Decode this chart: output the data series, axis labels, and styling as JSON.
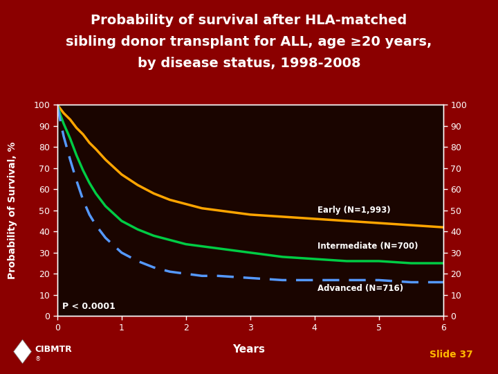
{
  "title_line1": "Probability of survival after HLA-matched",
  "title_line2": "sibling donor transplant for ALL, age ≥20 years,",
  "title_line3": "by disease status, 1998-2008",
  "bg_outer": "#8B0000",
  "bg_plot": "#1a0500",
  "bg_bottom": "#100200",
  "xlabel": "Years",
  "ylabel": "Probability of Survival, %",
  "xlim": [
    0,
    6
  ],
  "ylim": [
    0,
    100
  ],
  "xticks": [
    0,
    1,
    2,
    3,
    4,
    5,
    6
  ],
  "yticks": [
    0,
    10,
    20,
    30,
    40,
    50,
    60,
    70,
    80,
    90,
    100
  ],
  "pvalue": "P < 0.0001",
  "slide_text": "Slide 37",
  "curves": {
    "early": {
      "label": "Early (N=1,993)",
      "color": "#FFA500",
      "linestyle": "solid",
      "linewidth": 2.5,
      "x": [
        0,
        0.05,
        0.1,
        0.2,
        0.3,
        0.4,
        0.5,
        0.6,
        0.75,
        1.0,
        1.25,
        1.5,
        1.75,
        2.0,
        2.25,
        2.5,
        3.0,
        3.5,
        4.0,
        4.5,
        5.0,
        5.5,
        6.0
      ],
      "y": [
        100,
        98,
        96,
        93,
        89,
        86,
        82,
        79,
        74,
        67,
        62,
        58,
        55,
        53,
        51,
        50,
        48,
        47,
        46,
        45,
        44,
        43,
        42
      ]
    },
    "intermediate": {
      "label": "Intermediate (N=700)",
      "color": "#00CC44",
      "linestyle": "solid",
      "linewidth": 2.5,
      "x": [
        0,
        0.05,
        0.1,
        0.2,
        0.3,
        0.4,
        0.5,
        0.6,
        0.75,
        1.0,
        1.25,
        1.5,
        1.75,
        2.0,
        2.25,
        2.5,
        3.0,
        3.5,
        4.0,
        4.5,
        5.0,
        5.5,
        6.0
      ],
      "y": [
        100,
        95,
        91,
        84,
        76,
        69,
        63,
        58,
        52,
        45,
        41,
        38,
        36,
        34,
        33,
        32,
        30,
        28,
        27,
        26,
        26,
        25,
        25
      ]
    },
    "advanced": {
      "label": "Advanced (N=716)",
      "color": "#5599FF",
      "linestyle": "dashed",
      "linewidth": 2.5,
      "x": [
        0,
        0.05,
        0.1,
        0.2,
        0.3,
        0.4,
        0.5,
        0.6,
        0.75,
        1.0,
        1.25,
        1.5,
        1.75,
        2.0,
        2.25,
        2.5,
        3.0,
        3.5,
        4.0,
        4.5,
        5.0,
        5.5,
        6.0
      ],
      "y": [
        100,
        92,
        85,
        74,
        64,
        55,
        48,
        43,
        37,
        30,
        26,
        23,
        21,
        20,
        19,
        19,
        18,
        17,
        17,
        17,
        17,
        16,
        16
      ]
    }
  },
  "annotations": {
    "early_x": 4.05,
    "early_y": 50,
    "intermediate_x": 4.05,
    "intermediate_y": 33,
    "advanced_x": 4.05,
    "advanced_y": 13
  },
  "title_color": "#FFFFFF",
  "axis_color": "#FFFFFF",
  "tick_color": "#FFFFFF",
  "label_color": "#FFFFFF",
  "title_fontsize": 14,
  "axis_label_fontsize": 10,
  "tick_fontsize": 9,
  "ann_fontsize": 8.5
}
